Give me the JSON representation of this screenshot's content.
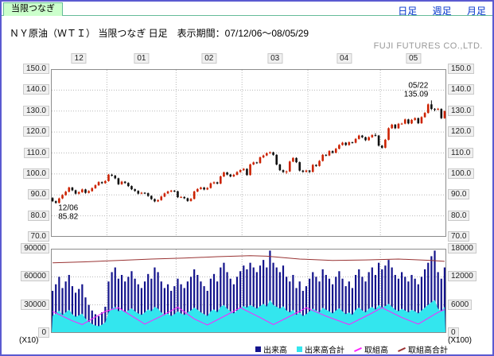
{
  "tab": {
    "label": "当限つなぎ"
  },
  "nav": {
    "items": [
      {
        "label": "日足"
      },
      {
        "label": "週足"
      },
      {
        "label": "月足"
      }
    ]
  },
  "header": {
    "title": "ＮＹ原油（ＷＴＩ） 当限つなぎ 日足　表示期間：07/12/06～08/05/29",
    "brand": "FUJI FUTURES CO.,LTD."
  },
  "colors": {
    "up": "#cc2200",
    "down": "#111111",
    "volume": "#14148c",
    "area": "#33e6ee",
    "oi": "#ff22ff",
    "total_oi": "#993333",
    "grid": "#b8b8b8"
  },
  "chart_data": {
    "type": "candlestick",
    "title": "ＮＹ原油（ＷＴＩ） 当限つなぎ 日足",
    "period": "07/12/06～08/05/29",
    "price": {
      "ylim": [
        70,
        150
      ],
      "yticks": [
        "150.0",
        "140.0",
        "130.0",
        "120.0",
        "110.0",
        "100.0",
        "90.0",
        "80.0",
        "70.0"
      ],
      "months": {
        "labels": [
          "12",
          "01",
          "02",
          "03",
          "04",
          "05"
        ],
        "start_index": [
          0,
          17,
          38,
          58,
          78,
          100
        ]
      },
      "annotations": {
        "high": {
          "date": "05/22",
          "value": "135.09",
          "index": 115
        },
        "low": {
          "date": "12/06",
          "value": "85.82",
          "index": 1
        }
      },
      "candles": [
        [
          88.5,
          88.9,
          86.6,
          87.0
        ],
        [
          87.0,
          87.3,
          85.82,
          86.2
        ],
        [
          86.2,
          88.7,
          85.9,
          88.3
        ],
        [
          88.3,
          90.3,
          88.0,
          89.9
        ],
        [
          89.9,
          91.9,
          89.6,
          91.5
        ],
        [
          91.5,
          93.9,
          91.2,
          93.5
        ],
        [
          93.5,
          93.8,
          91.8,
          92.2
        ],
        [
          92.2,
          92.5,
          90.2,
          90.6
        ],
        [
          90.6,
          91.7,
          90.2,
          91.3
        ],
        [
          91.3,
          93.0,
          91.0,
          92.6
        ],
        [
          92.6,
          92.9,
          90.6,
          91.0
        ],
        [
          91.0,
          92.2,
          90.7,
          91.8
        ],
        [
          91.8,
          93.6,
          91.5,
          93.2
        ],
        [
          93.2,
          95.0,
          92.9,
          94.6
        ],
        [
          94.6,
          96.5,
          94.3,
          96.1
        ],
        [
          96.1,
          96.4,
          95.2,
          95.6
        ],
        [
          95.6,
          97.0,
          95.3,
          96.6
        ],
        [
          96.6,
          100.0,
          96.3,
          99.6
        ],
        [
          99.6,
          100.1,
          98.8,
          99.2
        ],
        [
          99.2,
          99.5,
          97.5,
          97.9
        ],
        [
          97.9,
          98.2,
          94.7,
          95.1
        ],
        [
          95.1,
          96.7,
          94.8,
          96.3
        ],
        [
          96.3,
          96.6,
          95.3,
          95.7
        ],
        [
          95.7,
          96.0,
          93.8,
          94.2
        ],
        [
          94.2,
          94.5,
          92.3,
          92.7
        ],
        [
          92.7,
          93.0,
          91.5,
          91.9
        ],
        [
          91.9,
          92.2,
          90.2,
          90.6
        ],
        [
          90.6,
          91.4,
          90.3,
          91.0
        ],
        [
          91.0,
          91.3,
          90.4,
          90.8
        ],
        [
          90.8,
          91.1,
          89.1,
          89.5
        ],
        [
          89.5,
          89.8,
          87.6,
          88.0
        ],
        [
          88.0,
          88.3,
          86.5,
          86.9
        ],
        [
          86.9,
          87.9,
          86.6,
          87.5
        ],
        [
          87.5,
          89.6,
          87.2,
          89.2
        ],
        [
          89.2,
          91.1,
          88.9,
          90.7
        ],
        [
          90.7,
          92.0,
          90.4,
          91.6
        ],
        [
          91.6,
          92.4,
          91.2,
          92.0
        ],
        [
          92.0,
          92.3,
          91.3,
          91.7
        ],
        [
          91.7,
          92.0,
          88.5,
          88.9
        ],
        [
          88.9,
          89.4,
          88.5,
          89.0
        ],
        [
          89.0,
          89.3,
          88.0,
          88.4
        ],
        [
          88.4,
          88.7,
          86.7,
          87.1
        ],
        [
          87.1,
          88.5,
          86.8,
          88.1
        ],
        [
          88.1,
          92.0,
          87.8,
          91.6
        ],
        [
          91.6,
          93.2,
          91.3,
          92.8
        ],
        [
          92.8,
          93.9,
          92.5,
          93.5
        ],
        [
          93.5,
          93.8,
          92.2,
          92.6
        ],
        [
          92.6,
          93.7,
          92.3,
          93.3
        ],
        [
          93.3,
          95.9,
          93.0,
          95.5
        ],
        [
          95.5,
          96.4,
          95.1,
          96.0
        ],
        [
          96.0,
          96.3,
          95.0,
          95.4
        ],
        [
          95.4,
          99.2,
          95.1,
          98.8
        ],
        [
          98.8,
          101.1,
          98.5,
          100.7
        ],
        [
          100.7,
          101.0,
          99.3,
          99.7
        ],
        [
          99.7,
          100.0,
          98.4,
          98.8
        ],
        [
          98.8,
          100.0,
          98.5,
          99.6
        ],
        [
          99.6,
          101.3,
          99.3,
          100.9
        ],
        [
          100.9,
          102.2,
          100.6,
          101.8
        ],
        [
          101.8,
          102.8,
          101.5,
          102.4
        ],
        [
          102.4,
          102.7,
          99.1,
          99.5
        ],
        [
          99.5,
          104.9,
          99.2,
          104.5
        ],
        [
          104.5,
          105.9,
          104.2,
          105.5
        ],
        [
          105.5,
          105.8,
          104.8,
          105.2
        ],
        [
          105.2,
          108.3,
          104.9,
          107.9
        ],
        [
          107.9,
          109.2,
          107.5,
          108.8
        ],
        [
          108.8,
          110.3,
          108.5,
          109.9
        ],
        [
          109.9,
          110.7,
          109.6,
          110.3
        ],
        [
          110.3,
          110.6,
          108.7,
          109.1
        ],
        [
          109.1,
          109.4,
          104.1,
          104.5
        ],
        [
          104.5,
          104.8,
          101.4,
          101.8
        ],
        [
          101.8,
          102.1,
          100.5,
          100.9
        ],
        [
          100.9,
          101.6,
          100.0,
          101.2
        ],
        [
          101.2,
          106.3,
          100.9,
          105.9
        ],
        [
          105.9,
          108.0,
          105.6,
          107.6
        ],
        [
          107.6,
          107.9,
          105.2,
          105.6
        ],
        [
          105.6,
          105.9,
          101.2,
          101.6
        ],
        [
          101.6,
          101.9,
          100.6,
          101.0
        ],
        [
          101.0,
          102.0,
          100.7,
          101.6
        ],
        [
          101.6,
          101.9,
          100.4,
          101.0
        ],
        [
          101.0,
          104.7,
          100.7,
          104.3
        ],
        [
          104.3,
          104.6,
          103.4,
          103.8
        ],
        [
          103.8,
          106.6,
          103.5,
          106.2
        ],
        [
          106.2,
          109.5,
          105.9,
          109.1
        ],
        [
          109.1,
          109.4,
          108.4,
          108.8
        ],
        [
          108.8,
          111.3,
          108.5,
          110.9
        ],
        [
          110.9,
          111.2,
          109.7,
          110.1
        ],
        [
          110.1,
          112.4,
          109.8,
          112.0
        ],
        [
          112.0,
          114.2,
          111.7,
          113.8
        ],
        [
          113.8,
          115.3,
          113.5,
          114.9
        ],
        [
          114.9,
          115.2,
          113.4,
          113.8
        ],
        [
          113.8,
          115.5,
          113.5,
          115.1
        ],
        [
          115.1,
          115.4,
          114.5,
          114.9
        ],
        [
          114.9,
          117.1,
          114.6,
          116.7
        ],
        [
          116.7,
          118.7,
          116.4,
          118.3
        ],
        [
          118.3,
          118.6,
          117.1,
          117.5
        ],
        [
          117.5,
          117.8,
          115.7,
          116.1
        ],
        [
          116.1,
          117.9,
          115.8,
          117.5
        ],
        [
          117.5,
          118.9,
          117.2,
          118.5
        ],
        [
          118.5,
          119.4,
          117.9,
          118.3
        ],
        [
          118.3,
          118.6,
          113.1,
          113.5
        ],
        [
          113.5,
          113.8,
          112.1,
          112.5
        ],
        [
          112.5,
          116.7,
          112.2,
          116.3
        ],
        [
          116.3,
          122.2,
          116.0,
          121.8
        ],
        [
          121.8,
          123.9,
          121.5,
          123.5
        ],
        [
          123.5,
          123.8,
          121.4,
          121.8
        ],
        [
          121.8,
          124.3,
          121.5,
          123.9
        ],
        [
          123.9,
          124.4,
          123.5,
          124.0
        ],
        [
          124.0,
          126.4,
          123.7,
          126.0
        ],
        [
          126.0,
          126.3,
          123.7,
          124.1
        ],
        [
          124.1,
          126.2,
          123.8,
          125.8
        ],
        [
          125.8,
          127.0,
          125.4,
          126.6
        ],
        [
          126.6,
          126.9,
          123.8,
          124.2
        ],
        [
          124.2,
          127.5,
          123.9,
          127.1
        ],
        [
          127.1,
          129.5,
          126.8,
          129.1
        ],
        [
          129.1,
          133.6,
          128.8,
          133.2
        ],
        [
          133.2,
          135.09,
          130.5,
          131.0
        ],
        [
          131.0,
          131.4,
          129.9,
          130.8
        ],
        [
          130.8,
          131.5,
          130.4,
          131.0
        ],
        [
          131.0,
          131.3,
          126.2,
          126.6
        ],
        [
          126.6,
          130.3,
          126.3,
          129.9
        ]
      ]
    },
    "volume": {
      "left_ylim": [
        0,
        90000
      ],
      "left_yticks": [
        "90000",
        "60000",
        "30000",
        "0"
      ],
      "left_unit": "(X10)",
      "right_ylim": [
        0,
        18000
      ],
      "right_yticks": [
        "18000",
        "12000",
        "6000",
        "0"
      ],
      "right_unit": "(X100)",
      "bars": [
        45000,
        52000,
        60000,
        48000,
        55000,
        62000,
        50000,
        43000,
        47000,
        52000,
        38000,
        30000,
        24000,
        20000,
        18000,
        22000,
        28000,
        55000,
        65000,
        70000,
        58000,
        62000,
        55000,
        60000,
        66000,
        58000,
        52000,
        48000,
        55000,
        63000,
        58000,
        70000,
        65000,
        55000,
        48000,
        52000,
        45000,
        50000,
        58000,
        52000,
        48000,
        55000,
        60000,
        68000,
        62000,
        55000,
        50000,
        45000,
        58000,
        63000,
        55000,
        70000,
        75000,
        65000,
        58000,
        52000,
        60000,
        66000,
        72000,
        68000,
        75000,
        70000,
        65000,
        72000,
        78000,
        70000,
        88000,
        75000,
        70000,
        65000,
        72000,
        60000,
        55000,
        62000,
        48000,
        55000,
        45000,
        50000,
        58000,
        65000,
        60000,
        55000,
        68000,
        62000,
        58000,
        52000,
        60000,
        66000,
        58000,
        50000,
        55000,
        48000,
        62000,
        68000,
        60000,
        55000,
        65000,
        70000,
        62000,
        75000,
        68000,
        72000,
        78000,
        70000,
        62000,
        58000,
        65000,
        60000,
        55000,
        62000,
        58000,
        52000,
        60000,
        68000,
        75000,
        82000,
        88000,
        65000,
        58000,
        70000
      ],
      "area": [
        18000,
        20800,
        24000,
        19200,
        22000,
        24800,
        20000,
        17200,
        18800,
        20800,
        15200,
        12000,
        9600,
        8000,
        7200,
        8800,
        11200,
        22000,
        26000,
        28000,
        23200,
        24800,
        22000,
        24000,
        26400,
        23200,
        20800,
        19200,
        22000,
        25200,
        23200,
        28000,
        26000,
        22000,
        19200,
        20800,
        18000,
        20000,
        23200,
        20800,
        19200,
        22000,
        24000,
        27200,
        24800,
        22000,
        20000,
        18000,
        23200,
        25200,
        22000,
        28000,
        30000,
        26000,
        23200,
        20800,
        24000,
        26400,
        28800,
        27200,
        30000,
        28000,
        26000,
        28800,
        31200,
        28000,
        35200,
        30000,
        28000,
        26000,
        28800,
        24000,
        22000,
        24800,
        19200,
        22000,
        18000,
        20000,
        23200,
        26000,
        24000,
        22000,
        27200,
        24800,
        23200,
        20800,
        24000,
        26400,
        23200,
        20000,
        22000,
        19200,
        24800,
        27200,
        24000,
        22000,
        26000,
        28000,
        24800,
        30000,
        27200,
        28800,
        31200,
        28000,
        24800,
        23200,
        26000,
        24000,
        22000,
        24800,
        23200,
        20800,
        24000,
        27200,
        30000,
        32800,
        35200,
        26000,
        23200,
        28000
      ],
      "open_interest": [
        {
          "i": 0,
          "v": 4600
        },
        {
          "i": 6,
          "v": 2600
        },
        {
          "i": 9,
          "v": 1800
        },
        {
          "i": 16,
          "v": 4600
        },
        {
          "i": 20,
          "v": 5400
        },
        {
          "i": 28,
          "v": 1900
        },
        {
          "i": 33,
          "v": 3600
        },
        {
          "i": 38,
          "v": 5500
        },
        {
          "i": 43,
          "v": 3000
        },
        {
          "i": 47,
          "v": 1700
        },
        {
          "i": 53,
          "v": 3900
        },
        {
          "i": 57,
          "v": 5400
        },
        {
          "i": 63,
          "v": 3300
        },
        {
          "i": 67,
          "v": 1800
        },
        {
          "i": 73,
          "v": 3900
        },
        {
          "i": 77,
          "v": 5400
        },
        {
          "i": 83,
          "v": 3600
        },
        {
          "i": 90,
          "v": 1800
        },
        {
          "i": 96,
          "v": 3900
        },
        {
          "i": 100,
          "v": 5400
        },
        {
          "i": 106,
          "v": 3300
        },
        {
          "i": 111,
          "v": 1900
        },
        {
          "i": 117,
          "v": 4400
        },
        {
          "i": 119,
          "v": 5000
        }
      ],
      "total_open_interest": [
        {
          "i": 0,
          "v": 15000
        },
        {
          "i": 10,
          "v": 15200
        },
        {
          "i": 20,
          "v": 15500
        },
        {
          "i": 30,
          "v": 15800
        },
        {
          "i": 40,
          "v": 16000
        },
        {
          "i": 50,
          "v": 16300
        },
        {
          "i": 60,
          "v": 16500
        },
        {
          "i": 65,
          "v": 16400
        },
        {
          "i": 75,
          "v": 15800
        },
        {
          "i": 85,
          "v": 15500
        },
        {
          "i": 95,
          "v": 15600
        },
        {
          "i": 105,
          "v": 15800
        },
        {
          "i": 115,
          "v": 15500
        },
        {
          "i": 119,
          "v": 15300
        }
      ]
    },
    "legend": [
      {
        "label": "出来高",
        "color": "#14148c",
        "marker": "square"
      },
      {
        "label": "出来高合計",
        "color": "#33e6ee",
        "marker": "square"
      },
      {
        "label": "取組高",
        "color": "#ff22ff",
        "marker": "line"
      },
      {
        "label": "取組高合計",
        "color": "#993333",
        "marker": "line"
      }
    ]
  }
}
